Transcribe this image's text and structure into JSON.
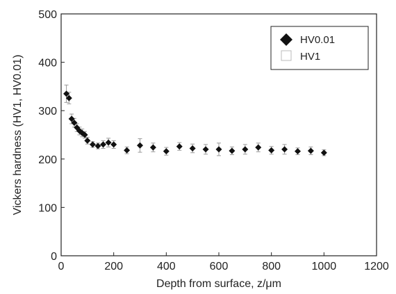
{
  "chart_data": {
    "type": "scatter",
    "xlabel": "Depth from surface, z/μm",
    "ylabel": "Vickers hardness (HV1, HV0.01)",
    "xlim": [
      0,
      1200
    ],
    "ylim": [
      0,
      500
    ],
    "x_ticks": [
      "0",
      "200",
      "400",
      "600",
      "800",
      "1000",
      "1200"
    ],
    "y_ticks": [
      "0",
      "100",
      "200",
      "300",
      "400",
      "500"
    ],
    "legend_position": "top-right",
    "grid": false,
    "series": [
      {
        "name": "HV0.01",
        "marker": "diamond",
        "color": "#111111",
        "points": [
          {
            "x": 20,
            "y": 335,
            "err": 18
          },
          {
            "x": 30,
            "y": 326,
            "err": 12
          },
          {
            "x": 40,
            "y": 283,
            "err": 10
          },
          {
            "x": 50,
            "y": 275,
            "err": 9
          },
          {
            "x": 60,
            "y": 265,
            "err": 8
          },
          {
            "x": 70,
            "y": 258,
            "err": 8
          },
          {
            "x": 80,
            "y": 254,
            "err": 8
          },
          {
            "x": 90,
            "y": 250,
            "err": 7
          },
          {
            "x": 100,
            "y": 238,
            "err": 7
          },
          {
            "x": 120,
            "y": 230,
            "err": 6
          },
          {
            "x": 140,
            "y": 227,
            "err": 6
          },
          {
            "x": 160,
            "y": 230,
            "err": 8
          },
          {
            "x": 180,
            "y": 234,
            "err": 9
          },
          {
            "x": 200,
            "y": 230,
            "err": 8
          },
          {
            "x": 250,
            "y": 218,
            "err": 7
          },
          {
            "x": 300,
            "y": 228,
            "err": 14
          },
          {
            "x": 350,
            "y": 224,
            "err": 9
          },
          {
            "x": 400,
            "y": 216,
            "err": 8
          },
          {
            "x": 450,
            "y": 226,
            "err": 8
          },
          {
            "x": 500,
            "y": 222,
            "err": 9
          },
          {
            "x": 550,
            "y": 220,
            "err": 10
          },
          {
            "x": 600,
            "y": 220,
            "err": 13
          },
          {
            "x": 650,
            "y": 217,
            "err": 8
          },
          {
            "x": 700,
            "y": 220,
            "err": 10
          },
          {
            "x": 750,
            "y": 224,
            "err": 9
          },
          {
            "x": 800,
            "y": 218,
            "err": 8
          },
          {
            "x": 850,
            "y": 220,
            "err": 10
          },
          {
            "x": 900,
            "y": 216,
            "err": 7
          },
          {
            "x": 950,
            "y": 217,
            "err": 8
          },
          {
            "x": 1000,
            "y": 213,
            "err": 6
          }
        ]
      },
      {
        "name": "HV1",
        "marker": "square-open",
        "color": "#bbbbbb",
        "points": []
      }
    ]
  }
}
